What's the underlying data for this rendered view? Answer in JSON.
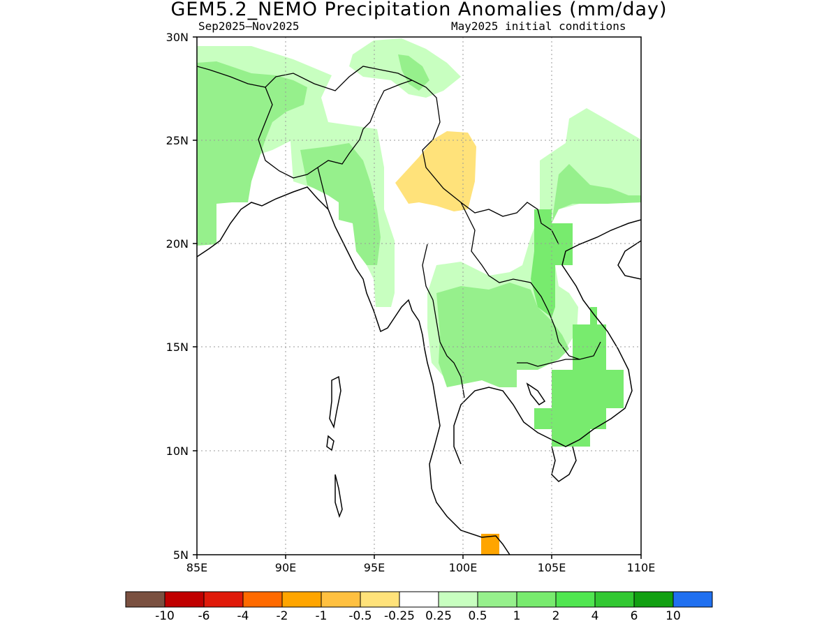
{
  "title": "GEM5.2_NEMO Precipitation Anomalies (mm/day)",
  "period": "Sep2025–Nov2025",
  "init_conditions": "May2025 initial conditions",
  "map": {
    "lon_range": [
      85,
      110
    ],
    "lat_range": [
      5,
      30
    ],
    "lon_ticks": [
      "85E",
      "90E",
      "95E",
      "100E",
      "105E",
      "110E"
    ],
    "lat_ticks": [
      "5N",
      "10N",
      "15N",
      "20N",
      "25N",
      "30N"
    ],
    "grid": true
  },
  "colorbar": {
    "colors": [
      "#7a5040",
      "#c00000",
      "#e01a0a",
      "#ff6a00",
      "#ffa500",
      "#ffc040",
      "#ffe27a",
      "#ffffff",
      "#c8ffc0",
      "#96f08c",
      "#78eb6e",
      "#50e650",
      "#32c832",
      "#12a012",
      "#2070f0"
    ],
    "labels": [
      "-10",
      "-6",
      "-4",
      "-2",
      "-1",
      "-0.5",
      "-0.25",
      "0.25",
      "0.5",
      "1",
      "2",
      "4",
      "6",
      "10"
    ]
  }
}
